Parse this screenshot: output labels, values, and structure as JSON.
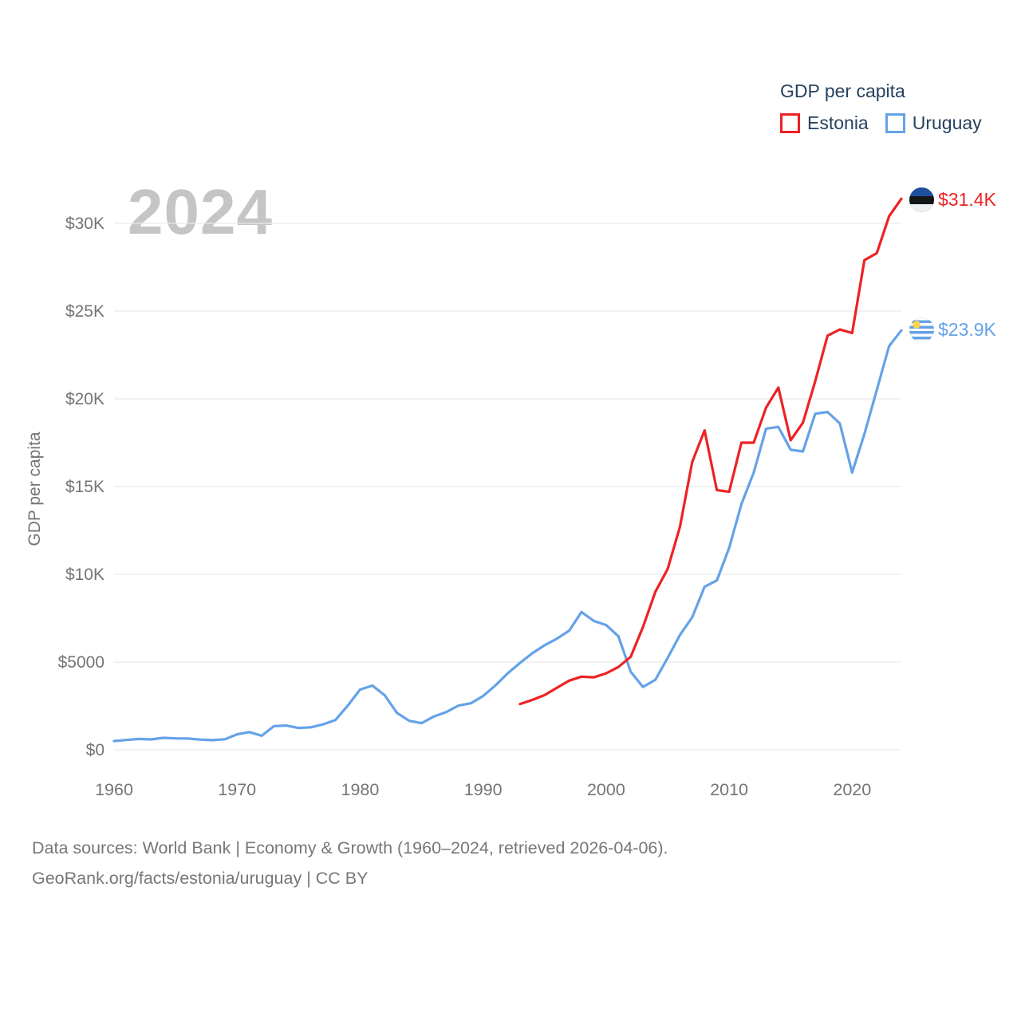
{
  "legend": {
    "title": "GDP per capita",
    "items": [
      {
        "label": "Estonia",
        "color": "#ed2224"
      },
      {
        "label": "Uruguay",
        "color": "#64a2e8"
      }
    ]
  },
  "watermark": "2024",
  "end_labels": [
    {
      "series": "Estonia",
      "text": "$31.4K",
      "color": "#ed2224",
      "flag": "estonia-flag-icon"
    },
    {
      "series": "Uruguay",
      "text": "$23.9K",
      "color": "#64a2e8",
      "flag": "uruguay-flag-icon"
    }
  ],
  "footer": {
    "line1": "Data sources: World Bank | Economy & Growth (1960–2024, retrieved 2026-04-06).",
    "line2": "GeoRank.org/facts/estonia/uruguay | CC BY"
  },
  "chart_data": {
    "type": "line",
    "title": "GDP per capita",
    "xlabel": "",
    "ylabel": "GDP per capita",
    "xlim": [
      1960,
      2024
    ],
    "ylim": [
      0,
      31500
    ],
    "grid": "horizontal",
    "legend_position": "top-right",
    "x_ticks": [
      1960,
      1970,
      1980,
      1990,
      2000,
      2010,
      2020
    ],
    "y_ticks": [
      {
        "value": 0,
        "label": "$0"
      },
      {
        "value": 5000,
        "label": "$5000"
      },
      {
        "value": 10000,
        "label": "$10K"
      },
      {
        "value": 15000,
        "label": "$15K"
      },
      {
        "value": 20000,
        "label": "$20K"
      },
      {
        "value": 25000,
        "label": "$25K"
      },
      {
        "value": 30000,
        "label": "$30K"
      }
    ],
    "series": [
      {
        "name": "Uruguay",
        "color": "#64a2e8",
        "start_year": 1960,
        "end_value_label": "$23.9K",
        "values": [
          500,
          560,
          620,
          590,
          680,
          650,
          640,
          580,
          550,
          600,
          880,
          1010,
          800,
          1350,
          1380,
          1240,
          1280,
          1450,
          1700,
          2520,
          3430,
          3660,
          3110,
          2100,
          1650,
          1520,
          1900,
          2150,
          2520,
          2650,
          3070,
          3670,
          4360,
          4950,
          5500,
          5960,
          6330,
          6790,
          7850,
          7340,
          7110,
          6470,
          4450,
          3580,
          3990,
          5230,
          6540,
          7550,
          9290,
          9650,
          11500,
          14000,
          15800,
          18300,
          18400,
          17100,
          17000,
          19150,
          19250,
          18600,
          15800,
          18000,
          20500,
          23000,
          23900
        ]
      },
      {
        "name": "Estonia",
        "color": "#ed2224",
        "start_year": 1993,
        "end_value_label": "$31.4K",
        "values": [
          2610,
          2840,
          3120,
          3530,
          3940,
          4170,
          4130,
          4360,
          4720,
          5300,
          7000,
          9000,
          10300,
          12700,
          16400,
          18200,
          14800,
          14700,
          17500,
          17500,
          19500,
          20640,
          17640,
          18640,
          21000,
          23600,
          23950,
          23750,
          27900,
          28300,
          30400,
          31400
        ]
      }
    ]
  }
}
